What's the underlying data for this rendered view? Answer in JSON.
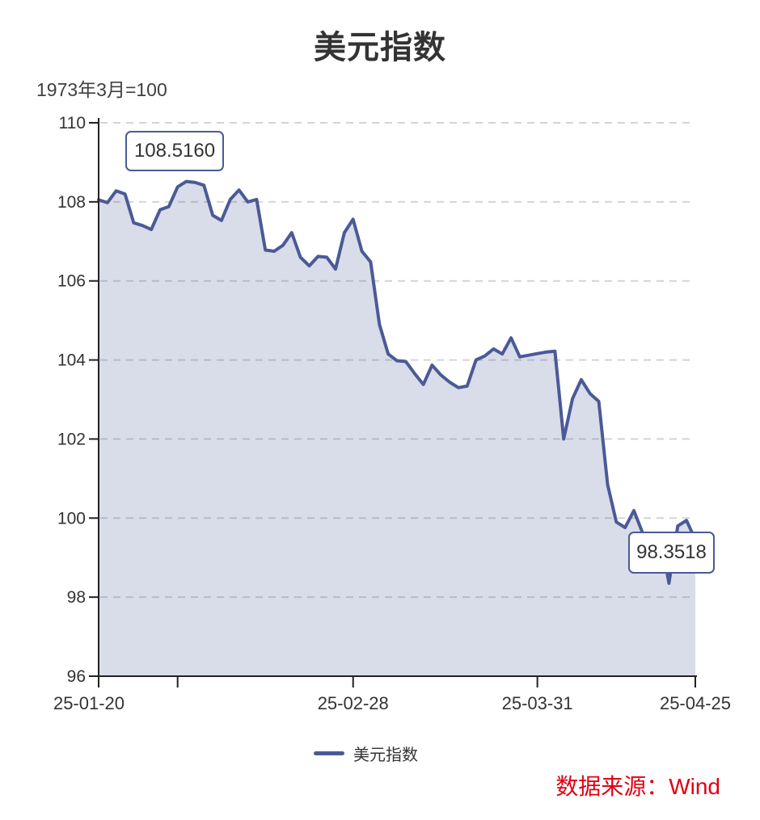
{
  "header": {
    "title": "美元指数",
    "subtitle": "1973年3月=100"
  },
  "legend": {
    "label": "美元指数"
  },
  "source": {
    "text": "数据来源：Wind"
  },
  "annotations": {
    "max_label": "108.5160",
    "min_label": "98.3518"
  },
  "colors": {
    "line": "#4b5a96",
    "fill": "rgba(75,90,150,0.21)",
    "grid": "#d4d4d4",
    "axis": "#222222",
    "text": "#333333",
    "source_red": "#e00012"
  },
  "chart_data": {
    "type": "area",
    "title": "美元指数",
    "subtitle_note": "1973年3月=100",
    "legend": [
      "美元指数"
    ],
    "legend_position": "bottom-center",
    "grid": "horizontal-dashed",
    "ylim": [
      96,
      110
    ],
    "y_ticks": [
      96,
      98,
      100,
      102,
      104,
      106,
      108,
      110
    ],
    "x_first_label": "25-01-20",
    "x_last_label": "25-04-25",
    "x_axis_ticks": [
      {
        "index": 0,
        "label": "25-01-20"
      },
      {
        "index": 9,
        "label": ""
      },
      {
        "index": 29,
        "label": "25-02-28"
      },
      {
        "index": 50,
        "label": "25-03-31"
      },
      {
        "index": 68,
        "label": "25-04-25"
      }
    ],
    "max_point": {
      "date": "25-02-03",
      "value": 108.516
    },
    "min_point": {
      "date": "25-04-22",
      "value": 98.3518
    },
    "x": [
      "01-20",
      "01-21",
      "01-22",
      "01-23",
      "01-24",
      "01-27",
      "01-28",
      "01-29",
      "01-30",
      "01-31",
      "02-03",
      "02-04",
      "02-05",
      "02-06",
      "02-07",
      "02-10",
      "02-11",
      "02-12",
      "02-13",
      "02-14",
      "02-17",
      "02-18",
      "02-19",
      "02-20",
      "02-21",
      "02-24",
      "02-25",
      "02-26",
      "02-27",
      "02-28",
      "03-03",
      "03-04",
      "03-05",
      "03-06",
      "03-07",
      "03-10",
      "03-11",
      "03-12",
      "03-13",
      "03-14",
      "03-17",
      "03-18",
      "03-19",
      "03-20",
      "03-21",
      "03-24",
      "03-25",
      "03-26",
      "03-27",
      "03-28",
      "03-31",
      "04-01",
      "04-02",
      "04-03",
      "04-04",
      "04-07",
      "04-08",
      "04-09",
      "04-10",
      "04-11",
      "04-14",
      "04-15",
      "04-16",
      "04-17",
      "04-21",
      "04-22",
      "04-23",
      "04-24",
      "04-25"
    ],
    "values": [
      108.05,
      107.98,
      108.28,
      108.2,
      107.47,
      107.4,
      107.3,
      107.8,
      107.88,
      108.38,
      108.516,
      108.49,
      108.42,
      107.66,
      107.53,
      108.06,
      108.3,
      108.0,
      108.06,
      106.78,
      106.75,
      106.9,
      107.22,
      106.6,
      106.38,
      106.62,
      106.6,
      106.3,
      107.22,
      107.56,
      106.75,
      106.48,
      104.9,
      104.15,
      103.98,
      103.96,
      103.66,
      103.38,
      103.87,
      103.62,
      103.44,
      103.3,
      103.34,
      104.0,
      104.1,
      104.28,
      104.15,
      104.56,
      104.08,
      104.12,
      104.16,
      104.2,
      104.22,
      102.0,
      103.02,
      103.5,
      103.15,
      102.95,
      100.85,
      99.9,
      99.76,
      100.19,
      99.62,
      99.55,
      99.58,
      98.3518,
      99.8,
      99.94,
      99.45
    ]
  }
}
